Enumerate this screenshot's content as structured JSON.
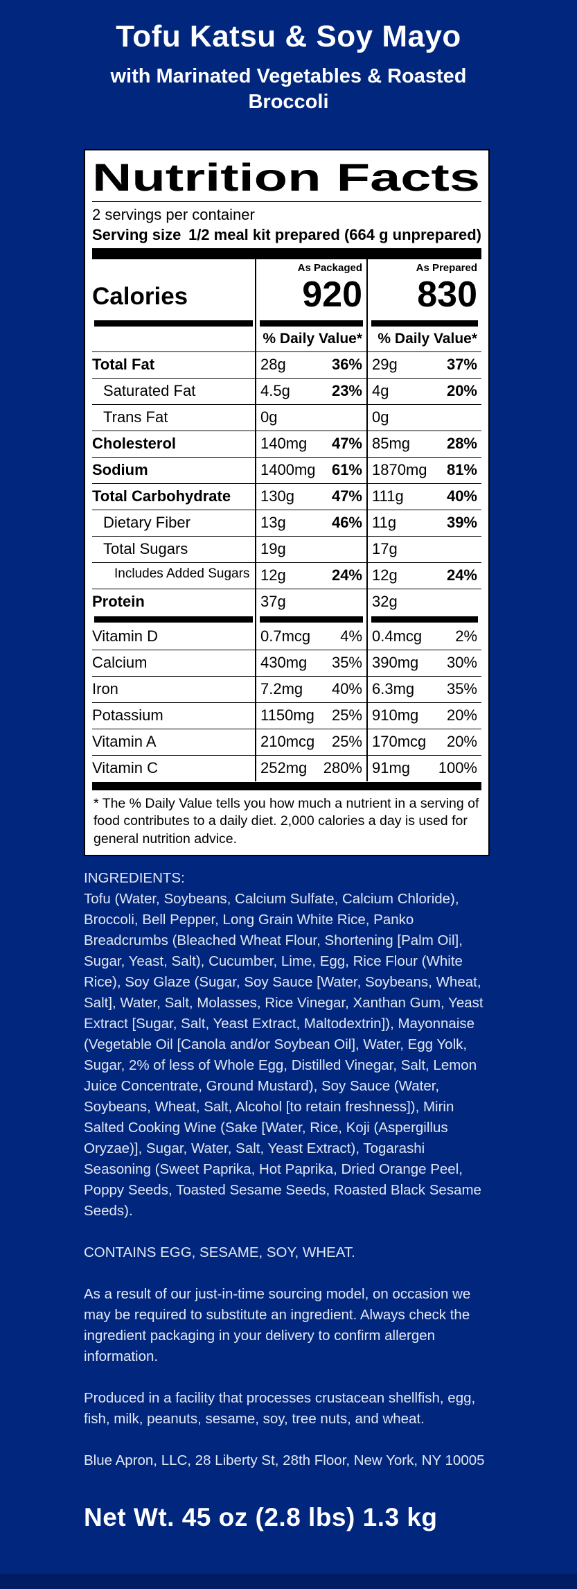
{
  "page": {
    "title": "Tofu Katsu & Soy Mayo",
    "subtitle": "with Marinated Vegetables & Roasted Broccoli",
    "net_weight": "Net Wt. 45 oz (2.8 lbs) 1.3 kg",
    "colors": {
      "background": "#01267E",
      "footer_strip": "#001D63",
      "label_background": "#FFFFFF",
      "label_text": "#000000",
      "body_text": "#E2E8F4"
    }
  },
  "label": {
    "title": "Nutrition Facts",
    "servings_per_container": "2 servings per container",
    "serving_size_label": "Serving size",
    "serving_size_value": "1/2 meal kit prepared (664 g unprepared)",
    "as_packaged_header": "As Packaged",
    "as_prepared_header": "As Prepared",
    "calories_label": "Calories",
    "calories_packaged": "920",
    "calories_prepared": "830",
    "daily_value_header": "% Daily Value*",
    "rows": [
      {
        "name": "Total Fat",
        "pack_amt": "28g",
        "pack_dv": "36%",
        "prep_amt": "29g",
        "prep_dv": "37%"
      },
      {
        "name": "Saturated Fat",
        "pack_amt": "4.5g",
        "pack_dv": "23%",
        "prep_amt": "4g",
        "prep_dv": "20%"
      },
      {
        "name": "Trans Fat",
        "pack_amt": "0g",
        "pack_dv": "",
        "prep_amt": "0g",
        "prep_dv": ""
      },
      {
        "name": "Cholesterol",
        "pack_amt": "140mg",
        "pack_dv": "47%",
        "prep_amt": "85mg",
        "prep_dv": "28%"
      },
      {
        "name": "Sodium",
        "pack_amt": "1400mg",
        "pack_dv": "61%",
        "prep_amt": "1870mg",
        "prep_dv": "81%"
      },
      {
        "name": "Total Carbohydrate",
        "pack_amt": "130g",
        "pack_dv": "47%",
        "prep_amt": "111g",
        "prep_dv": "40%"
      },
      {
        "name": "Dietary Fiber",
        "pack_amt": "13g",
        "pack_dv": "46%",
        "prep_amt": "11g",
        "prep_dv": "39%"
      },
      {
        "name": "Total Sugars",
        "pack_amt": "19g",
        "pack_dv": "",
        "prep_amt": "17g",
        "prep_dv": ""
      },
      {
        "name": "Includes Added Sugars",
        "pack_amt": "12g",
        "pack_dv": "24%",
        "prep_amt": "12g",
        "prep_dv": "24%"
      },
      {
        "name": "Protein",
        "pack_amt": "37g",
        "pack_dv": "",
        "prep_amt": "32g",
        "prep_dv": ""
      },
      {
        "name": "Vitamin D",
        "pack_amt": "0.7mcg",
        "pack_dv": "4%",
        "prep_amt": "0.4mcg",
        "prep_dv": "2%"
      },
      {
        "name": "Calcium",
        "pack_amt": "430mg",
        "pack_dv": "35%",
        "prep_amt": "390mg",
        "prep_dv": "30%"
      },
      {
        "name": "Iron",
        "pack_amt": "7.2mg",
        "pack_dv": "40%",
        "prep_amt": "6.3mg",
        "prep_dv": "35%"
      },
      {
        "name": "Potassium",
        "pack_amt": "1150mg",
        "pack_dv": "25%",
        "prep_amt": "910mg",
        "prep_dv": "20%"
      },
      {
        "name": "Vitamin A",
        "pack_amt": "210mcg",
        "pack_dv": "25%",
        "prep_amt": "170mcg",
        "prep_dv": "20%"
      },
      {
        "name": "Vitamin C",
        "pack_amt": "252mg",
        "pack_dv": "280%",
        "prep_amt": "91mg",
        "prep_dv": "100%"
      }
    ],
    "footnote": "* The % Daily Value tells you how much a nutrient in a serving of food contributes to a daily diet. 2,000 calories a day is used for general nutrition advice."
  },
  "ingredients": {
    "heading": "INGREDIENTS:",
    "body": "Tofu (Water, Soybeans, Calcium Sulfate, Calcium Chloride), Broccoli, Bell Pepper, Long Grain White Rice, Panko Breadcrumbs (Bleached Wheat Flour, Shortening [Palm Oil], Sugar, Yeast, Salt), Cucumber, Lime, Egg, Rice Flour (White Rice), Soy Glaze (Sugar, Soy Sauce [Water, Soybeans, Wheat, Salt], Water, Salt, Molasses, Rice Vinegar, Xanthan Gum, Yeast Extract [Sugar, Salt, Yeast Extract, Maltodextrin]), Mayonnaise (Vegetable Oil [Canola and/or Soybean Oil], Water, Egg Yolk, Sugar, 2% of less of Whole Egg, Distilled Vinegar, Salt, Lemon Juice Concentrate, Ground Mustard), Soy Sauce (Water, Soybeans, Wheat, Salt, Alcohol [to retain freshness]), Mirin Salted Cooking Wine (Sake [Water, Rice, Koji (Aspergillus Oryzae)], Sugar, Water, Salt, Yeast Extract), Togarashi Seasoning (Sweet Paprika, Hot Paprika, Dried Orange Peel, Poppy Seeds, Toasted Sesame Seeds, Roasted Black Sesame Seeds).",
    "contains": "CONTAINS EGG, SESAME, SOY, WHEAT.",
    "substitution_note": "As a result of our just-in-time sourcing model, on occasion we may be required to substitute an ingredient. Always check the ingredient packaging in your delivery to confirm allergen information.",
    "facility_note": "Produced in a facility that processes crustacean shellfish, egg, fish, milk, peanuts, sesame, soy, tree nuts, and wheat.",
    "address": "Blue Apron, LLC, 28 Liberty St, 28th Floor, New York, NY 10005"
  }
}
